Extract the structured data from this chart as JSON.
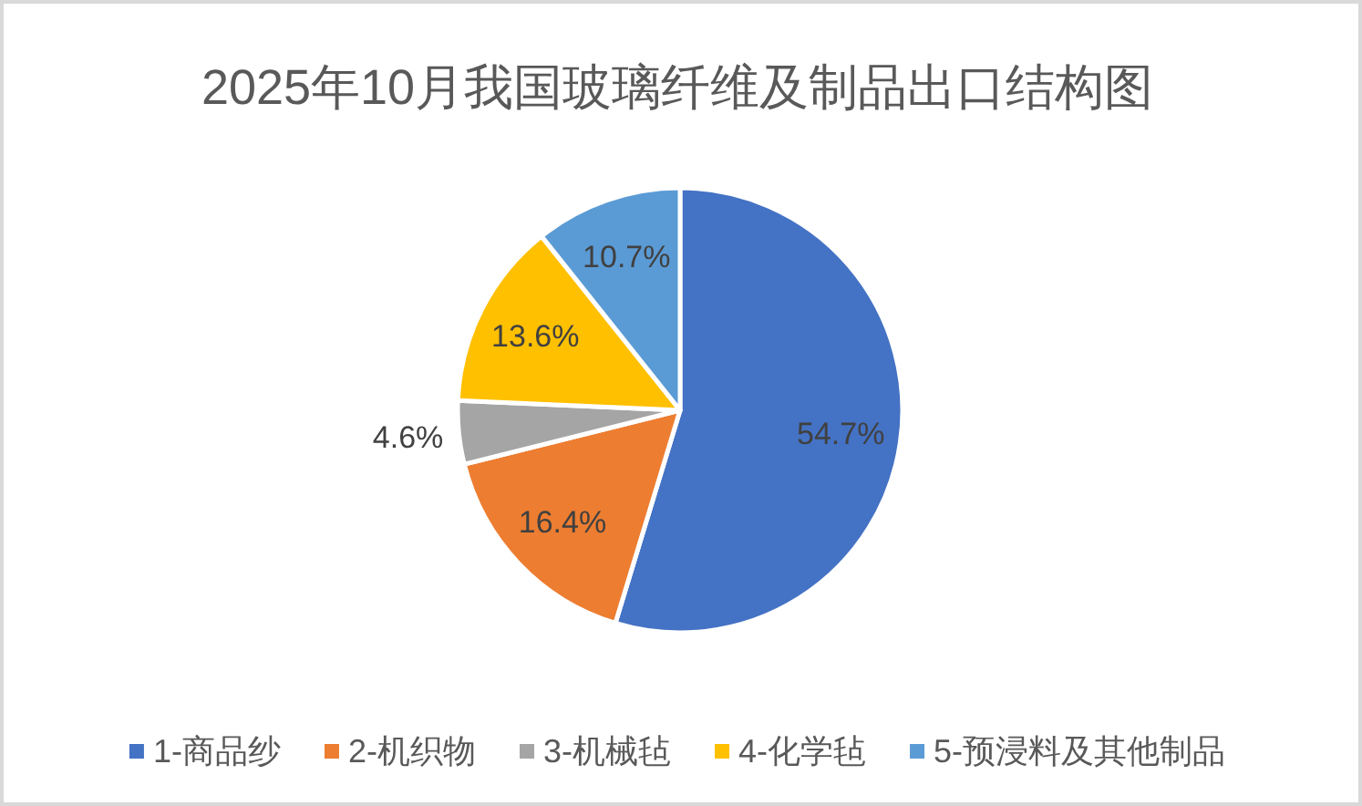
{
  "chart_data": {
    "type": "pie",
    "title": "2025年10月我国玻璃纤维及制品出口结构图",
    "categories": [
      "1-商品纱",
      "2-机织物",
      "3-机械毡",
      "4-化学毡",
      "5-预浸料及其他制品"
    ],
    "values": [
      54.7,
      16.4,
      4.6,
      13.6,
      10.7
    ],
    "colors": [
      "#4472c4",
      "#ed7d31",
      "#a5a5a5",
      "#ffc000",
      "#5b9bd5"
    ],
    "value_labels": [
      "54.7%",
      "16.4%",
      "4.6%",
      "13.6%",
      "10.7%"
    ],
    "legend": "bottom"
  }
}
